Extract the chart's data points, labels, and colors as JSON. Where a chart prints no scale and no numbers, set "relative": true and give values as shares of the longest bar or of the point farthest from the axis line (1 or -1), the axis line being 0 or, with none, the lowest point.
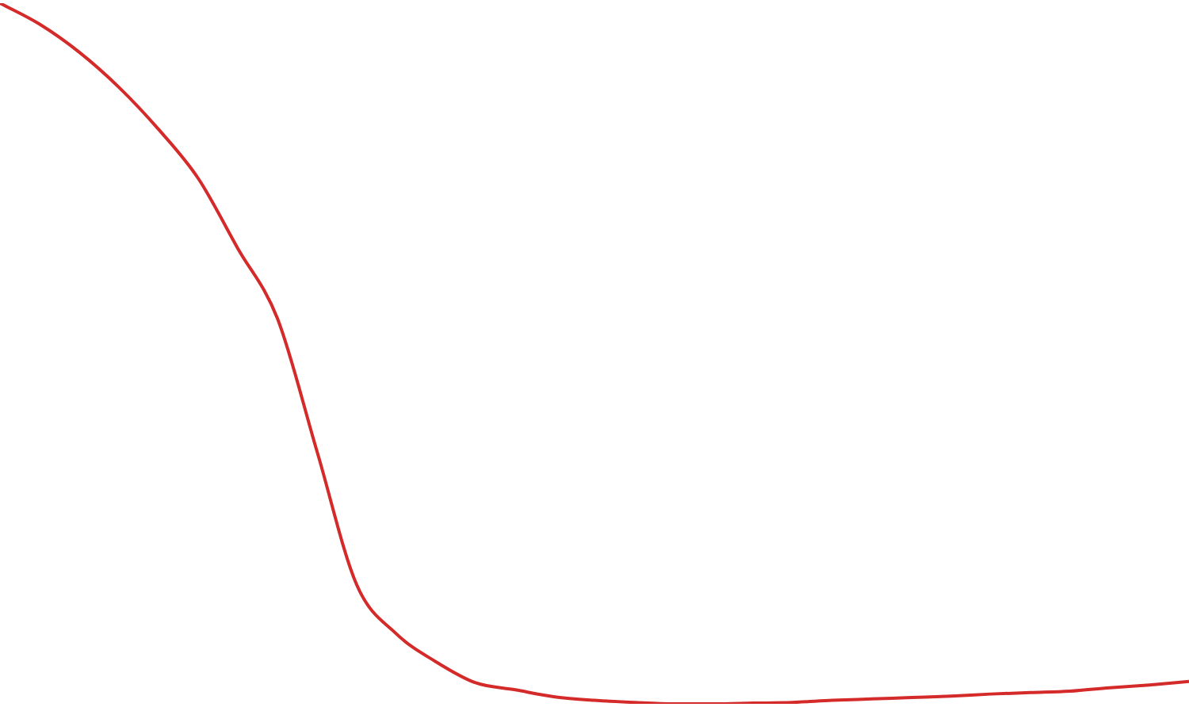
{
  "chart_data": {
    "type": "line",
    "relative": true,
    "marker": "none",
    "categories": [
      null,
      null,
      null,
      null,
      null,
      null,
      null,
      null,
      null,
      null,
      null,
      null,
      null,
      null,
      null,
      null,
      null,
      null,
      null,
      null,
      null,
      null,
      null,
      null,
      null,
      null,
      null,
      null,
      null,
      null,
      null
    ],
    "series": [
      {
        "color": "#d42a2a",
        "values": [
          1.0,
          0.97,
          0.93,
          0.88,
          0.82,
          0.75,
          0.65,
          0.55,
          0.36,
          0.17,
          0.1,
          0.06,
          0.03,
          0.02,
          0.01,
          0.005,
          0.002,
          0,
          0,
          0.001,
          0.002,
          0.005,
          0.007,
          0.009,
          0.011,
          0.014,
          0.016,
          0.018,
          0.023,
          0.027,
          0.032
        ]
      }
    ]
  }
}
